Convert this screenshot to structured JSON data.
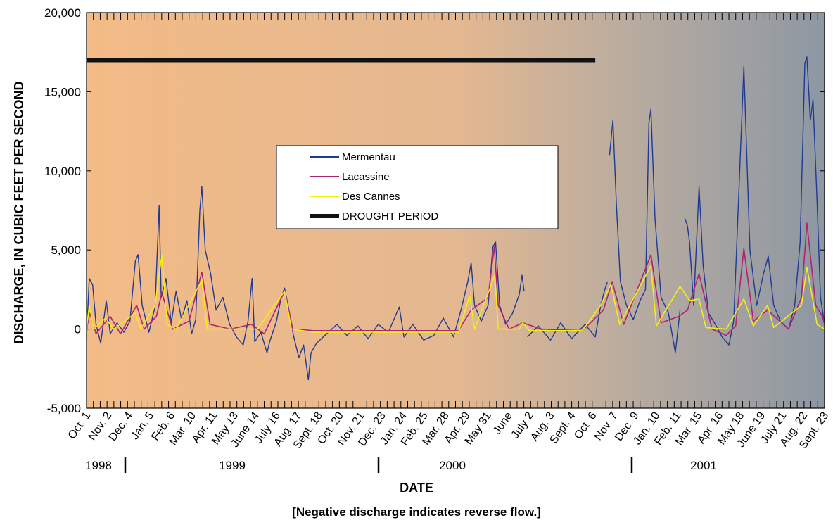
{
  "chart_data": {
    "type": "line",
    "xlabel": "DATE",
    "ylabel": "DISCHARGE, IN CUBIC FEET PER SECOND",
    "note": "[Negative discharge indicates reverse flow.]",
    "ylim": [
      -5000,
      20000
    ],
    "y_ticks": [
      -5000,
      0,
      5000,
      10000,
      15000,
      20000
    ],
    "y_tick_labels": [
      "-5,000",
      "0",
      "5,000",
      "10,000",
      "15,000",
      "20,000"
    ],
    "x_range": [
      "1998-10-01",
      "2001-09-23"
    ],
    "x_tick_labels": [
      "Oct. 1",
      "Nov. 2",
      "Dec. 4",
      "Jan. 5",
      "Feb. 6",
      "Mar. 10",
      "Apr. 11",
      "May 13",
      "June 14",
      "July 16",
      "Aug. 17",
      "Sept. 18",
      "Oct. 20",
      "Nov. 21",
      "Dec. 23",
      "Jan. 24",
      "Feb. 25",
      "Mar. 28",
      "Apr. 29",
      "May 31",
      "June",
      "July 2",
      "Aug. 3",
      "Sept. 4",
      "Oct. 6",
      "Nov. 7",
      "Dec. 9",
      "Jan. 10",
      "Feb. 11",
      "Mar. 15",
      "Apr. 16",
      "May 18",
      "June 19",
      "July 21",
      "Aug. 22",
      "Sept. 23"
    ],
    "years": [
      "1998",
      "1999",
      "2000",
      "2001"
    ],
    "grid": false,
    "legend_position": "center",
    "background_gradient": [
      "#f3bb86",
      "#8d97a3"
    ],
    "series": [
      {
        "name": "Mermentau",
        "color": "#1f3a93",
        "points": [
          [
            "1998-10-01",
            -500
          ],
          [
            "1998-10-05",
            3200
          ],
          [
            "1998-10-10",
            2800
          ],
          [
            "1998-10-15",
            300
          ],
          [
            "1998-10-22",
            -900
          ],
          [
            "1998-10-30",
            1800
          ],
          [
            "1998-11-05",
            -300
          ],
          [
            "1998-11-15",
            400
          ],
          [
            "1998-11-25",
            -200
          ],
          [
            "1998-12-04",
            500
          ],
          [
            "1998-12-12",
            4300
          ],
          [
            "1998-12-16",
            4700
          ],
          [
            "1998-12-22",
            1500
          ],
          [
            "1999-01-01",
            -200
          ],
          [
            "1999-01-10",
            1400
          ],
          [
            "1999-01-16",
            7800
          ],
          [
            "1999-01-19",
            2000
          ],
          [
            "1999-01-26",
            3200
          ],
          [
            "1999-02-03",
            400
          ],
          [
            "1999-02-10",
            2400
          ],
          [
            "1999-02-18",
            600
          ],
          [
            "1999-02-26",
            1800
          ],
          [
            "1999-03-05",
            -300
          ],
          [
            "1999-03-11",
            600
          ],
          [
            "1999-03-17",
            7500
          ],
          [
            "1999-03-20",
            9000
          ],
          [
            "1999-03-25",
            5000
          ],
          [
            "1999-04-02",
            3500
          ],
          [
            "1999-04-10",
            1200
          ],
          [
            "1999-04-20",
            2000
          ],
          [
            "1999-04-30",
            300
          ],
          [
            "1999-05-10",
            -500
          ],
          [
            "1999-05-20",
            -1000
          ],
          [
            "1999-05-27",
            500
          ],
          [
            "1999-06-02",
            3200
          ],
          [
            "1999-06-06",
            -800
          ],
          [
            "1999-06-15",
            -200
          ],
          [
            "1999-06-24",
            -1500
          ],
          [
            "1999-06-28",
            -800
          ],
          [
            "1999-07-08",
            500
          ],
          [
            "1999-07-15",
            2000
          ],
          [
            "1999-07-20",
            2600
          ],
          [
            "1999-07-26",
            1300
          ],
          [
            "1999-08-02",
            -400
          ],
          [
            "1999-08-10",
            -1800
          ],
          [
            "1999-08-17",
            -1000
          ],
          [
            "1999-08-24",
            -3200
          ],
          [
            "1999-08-28",
            -1500
          ],
          [
            "1999-09-05",
            -900
          ],
          [
            "1999-09-20",
            -300
          ],
          [
            "1999-10-05",
            300
          ],
          [
            "1999-10-20",
            -400
          ],
          [
            "1999-11-05",
            200
          ],
          [
            "1999-11-20",
            -600
          ],
          [
            "1999-12-05",
            300
          ],
          [
            "1999-12-20",
            -200
          ],
          [
            "2000-01-05",
            1400
          ],
          [
            "2000-01-12",
            -500
          ],
          [
            "2000-01-25",
            300
          ],
          [
            "2000-02-10",
            -700
          ],
          [
            "2000-02-25",
            -400
          ],
          [
            "2000-03-10",
            700
          ],
          [
            "2000-03-25",
            -500
          ],
          [
            "2000-04-05",
            1200
          ],
          [
            "2000-04-15",
            3000
          ],
          [
            "2000-04-20",
            4200
          ],
          [
            "2000-04-25",
            1500
          ],
          [
            "2000-05-05",
            500
          ],
          [
            "2000-05-15",
            1500
          ],
          [
            "2000-05-22",
            5200
          ],
          [
            "2000-05-26",
            5500
          ],
          [
            "2000-06-01",
            1500
          ],
          [
            "2000-06-10",
            300
          ],
          [
            "2000-06-20",
            1000
          ],
          [
            "2000-06-30",
            2200
          ],
          [
            "2000-07-04",
            3400
          ],
          [
            "2000-07-07",
            2400
          ],
          [
            "2000-07-08",
            null
          ],
          [
            "2000-07-12",
            -500
          ],
          [
            "2000-07-28",
            200
          ],
          [
            "2000-08-15",
            -700
          ],
          [
            "2000-08-30",
            400
          ],
          [
            "2000-09-15",
            -600
          ],
          [
            "2000-10-05",
            300
          ],
          [
            "2000-10-20",
            -500
          ],
          [
            "2000-10-28",
            1500
          ],
          [
            "2000-11-03",
            2500
          ],
          [
            "2000-11-07",
            3000
          ],
          [
            "2000-11-08",
            null
          ],
          [
            "2000-11-10",
            11000
          ],
          [
            "2000-11-15",
            13200
          ],
          [
            "2000-11-20",
            8000
          ],
          [
            "2000-11-26",
            3000
          ],
          [
            "2000-12-05",
            1500
          ],
          [
            "2000-12-15",
            600
          ],
          [
            "2000-12-25",
            1800
          ],
          [
            "2001-01-02",
            2500
          ],
          [
            "2001-01-07",
            13000
          ],
          [
            "2001-01-10",
            13900
          ],
          [
            "2001-01-16",
            7000
          ],
          [
            "2001-01-25",
            2000
          ],
          [
            "2001-02-05",
            1000
          ],
          [
            "2001-02-15",
            -1500
          ],
          [
            "2001-02-22",
            1200
          ],
          [
            "2001-02-28",
            null
          ],
          [
            "2001-03-01",
            7000
          ],
          [
            "2001-03-05",
            6500
          ],
          [
            "2001-03-08",
            5500
          ],
          [
            "2001-03-14",
            1500
          ],
          [
            "2001-03-22",
            9000
          ],
          [
            "2001-03-28",
            4000
          ],
          [
            "2001-04-05",
            1000
          ],
          [
            "2001-04-15",
            300
          ],
          [
            "2001-04-25",
            -500
          ],
          [
            "2001-05-05",
            -1000
          ],
          [
            "2001-05-12",
            500
          ],
          [
            "2001-05-20",
            9000
          ],
          [
            "2001-05-27",
            16600
          ],
          [
            "2001-06-05",
            5000
          ],
          [
            "2001-06-15",
            1500
          ],
          [
            "2001-06-25",
            3500
          ],
          [
            "2001-07-02",
            4600
          ],
          [
            "2001-07-10",
            1500
          ],
          [
            "2001-07-20",
            500
          ],
          [
            "2001-08-01",
            0
          ],
          [
            "2001-08-10",
            1500
          ],
          [
            "2001-08-18",
            5500
          ],
          [
            "2001-08-25",
            16800
          ],
          [
            "2001-08-28",
            17200
          ],
          [
            "2001-09-02",
            13200
          ],
          [
            "2001-09-06",
            14500
          ],
          [
            "2001-09-12",
            8000
          ],
          [
            "2001-09-17",
            2000
          ],
          [
            "2001-09-23",
            300
          ]
        ]
      },
      {
        "name": "Lacassine",
        "color": "#b0236e",
        "points": [
          [
            "1998-10-01",
            0
          ],
          [
            "1998-10-06",
            1000
          ],
          [
            "1998-10-15",
            -300
          ],
          [
            "1998-11-05",
            800
          ],
          [
            "1998-11-20",
            -300
          ],
          [
            "1998-12-14",
            1500
          ],
          [
            "1998-12-25",
            0
          ],
          [
            "1999-01-12",
            800
          ],
          [
            "1999-01-20",
            2300
          ],
          [
            "1999-02-05",
            0
          ],
          [
            "1999-03-01",
            500
          ],
          [
            "1999-03-20",
            3600
          ],
          [
            "1999-04-01",
            300
          ],
          [
            "1999-05-01",
            0
          ],
          [
            "1999-06-01",
            300
          ],
          [
            "1999-06-20",
            -300
          ],
          [
            "1999-07-20",
            2400
          ],
          [
            "1999-08-01",
            0
          ],
          [
            "1999-09-01",
            -100
          ],
          [
            "1999-11-01",
            -100
          ],
          [
            "2000-01-01",
            -100
          ],
          [
            "2000-04-01",
            -100
          ],
          [
            "2000-04-20",
            1200
          ],
          [
            "2000-05-15",
            2000
          ],
          [
            "2000-05-24",
            5200
          ],
          [
            "2000-05-30",
            1500
          ],
          [
            "2000-06-15",
            0
          ],
          [
            "2000-07-05",
            400
          ],
          [
            "2000-08-01",
            0
          ],
          [
            "2000-10-01",
            -100
          ],
          [
            "2000-11-01",
            1200
          ],
          [
            "2000-11-14",
            3000
          ],
          [
            "2000-12-01",
            300
          ],
          [
            "2001-01-10",
            4700
          ],
          [
            "2001-01-25",
            400
          ],
          [
            "2001-02-20",
            800
          ],
          [
            "2001-03-05",
            1200
          ],
          [
            "2001-03-22",
            3500
          ],
          [
            "2001-04-10",
            0
          ],
          [
            "2001-05-01",
            -400
          ],
          [
            "2001-05-15",
            200
          ],
          [
            "2001-05-27",
            5100
          ],
          [
            "2001-06-10",
            500
          ],
          [
            "2001-07-01",
            1200
          ],
          [
            "2001-08-01",
            0
          ],
          [
            "2001-08-20",
            2000
          ],
          [
            "2001-08-28",
            6700
          ],
          [
            "2001-09-10",
            1500
          ],
          [
            "2001-09-20",
            800
          ],
          [
            "2001-09-23",
            300
          ]
        ]
      },
      {
        "name": "Des Cannes",
        "color": "#f5ee16",
        "points": [
          [
            "1998-10-01",
            0
          ],
          [
            "1998-10-05",
            1500
          ],
          [
            "1998-10-12",
            0
          ],
          [
            "1998-10-29",
            700
          ],
          [
            "1998-11-10",
            0
          ],
          [
            "1998-12-12",
            1000
          ],
          [
            "1998-12-20",
            0
          ],
          [
            "1999-01-10",
            1500
          ],
          [
            "1999-01-20",
            4700
          ],
          [
            "1999-01-28",
            300
          ],
          [
            "1999-02-10",
            0
          ],
          [
            "1999-03-20",
            3100
          ],
          [
            "1999-03-28",
            0
          ],
          [
            "1999-05-01",
            0
          ],
          [
            "1999-06-10",
            0
          ],
          [
            "1999-07-20",
            2400
          ],
          [
            "1999-07-30",
            0
          ],
          [
            "1999-09-01",
            -200
          ],
          [
            "2000-01-01",
            -200
          ],
          [
            "2000-04-01",
            -200
          ],
          [
            "2000-04-18",
            2100
          ],
          [
            "2000-04-25",
            0
          ],
          [
            "2000-05-25",
            3400
          ],
          [
            "2000-05-30",
            0
          ],
          [
            "2000-06-30",
            0
          ],
          [
            "2000-07-05",
            400
          ],
          [
            "2000-07-15",
            -100
          ],
          [
            "2000-10-01",
            -100
          ],
          [
            "2000-10-28",
            1500
          ],
          [
            "2000-11-12",
            2800
          ],
          [
            "2000-11-25",
            300
          ],
          [
            "2001-01-10",
            4000
          ],
          [
            "2001-01-18",
            200
          ],
          [
            "2001-02-22",
            2700
          ],
          [
            "2001-03-08",
            1800
          ],
          [
            "2001-03-22",
            1900
          ],
          [
            "2001-04-01",
            100
          ],
          [
            "2001-05-01",
            0
          ],
          [
            "2001-05-27",
            1900
          ],
          [
            "2001-06-10",
            200
          ],
          [
            "2001-07-01",
            1500
          ],
          [
            "2001-07-10",
            100
          ],
          [
            "2001-08-20",
            1500
          ],
          [
            "2001-08-28",
            3900
          ],
          [
            "2001-09-05",
            2000
          ],
          [
            "2001-09-12",
            300
          ],
          [
            "2001-09-23",
            0
          ]
        ]
      }
    ],
    "drought_period": {
      "name": "DROUGHT PERIOD",
      "value": 17000,
      "start": "1998-10-01",
      "end": "2000-10-20",
      "color": "#111111"
    }
  }
}
